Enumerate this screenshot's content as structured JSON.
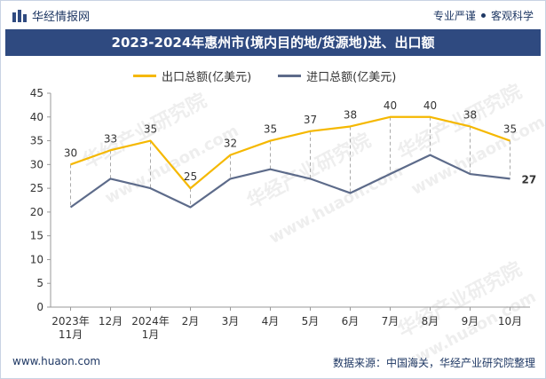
{
  "header": {
    "brand": "华经情报网",
    "motto_left": "专业严谨",
    "motto_right": "客观科学"
  },
  "title": "2023-2024年惠州市(境内目的地/货源地)进、出口额",
  "footer": {
    "website": "www.huaon.com",
    "source": "数据来源：中国海关，华经产业研究院整理"
  },
  "watermark": {
    "text_cn": "华经产业研究院",
    "text_url": "www.huaon.com"
  },
  "colors": {
    "export": "#f5b800",
    "import": "#5d6b8a",
    "title_bg": "#2f4a80"
  },
  "chart_data": {
    "type": "line",
    "title": "2023-2024年惠州市(境内目的地/货源地)进、出口额",
    "categories": [
      "2023年\n11月",
      "12月",
      "2024年\n1月",
      "2月",
      "3月",
      "4月",
      "5月",
      "6月",
      "7月",
      "8月",
      "9月",
      "10月"
    ],
    "series": [
      {
        "name": "出口总额(亿美元)",
        "values": [
          30,
          33,
          35,
          25,
          32,
          35,
          37,
          38,
          40,
          40,
          38,
          35
        ],
        "labels_shown": true
      },
      {
        "name": "进口总额(亿美元)",
        "values": [
          21,
          27,
          25,
          21,
          27,
          29,
          27,
          24,
          28,
          32,
          28,
          27
        ],
        "labels_shown": false,
        "last_label": "27"
      }
    ],
    "ylim": [
      0,
      45
    ],
    "yticks": [
      0,
      5,
      10,
      15,
      20,
      25,
      30,
      35,
      40,
      45
    ],
    "legend_position": "top-center",
    "xlabel": "",
    "ylabel": ""
  }
}
